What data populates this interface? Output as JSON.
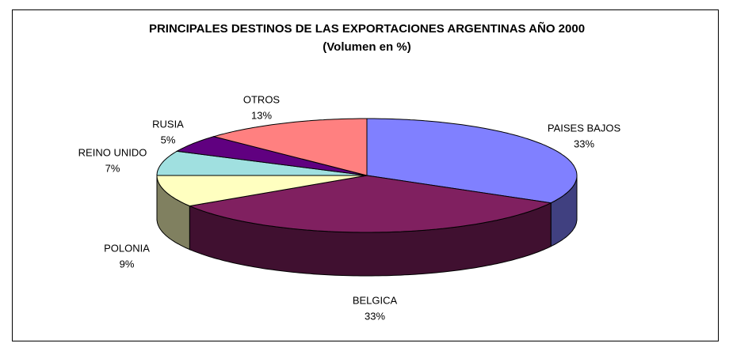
{
  "chart_data": {
    "type": "pie3d",
    "title": "PRINCIPALES DESTINOS DE LAS EXPORTACIONES ARGENTINAS AÑO 2000",
    "subtitle": "(Volumen en %)",
    "categories": [
      "PAISES BAJOS",
      "BELGICA",
      "POLONIA",
      "REINO UNIDO",
      "RUSIA",
      "OTROS"
    ],
    "values": [
      33,
      33,
      9,
      7,
      5,
      13
    ],
    "value_labels": [
      "33%",
      "33%",
      "9%",
      "7%",
      "5%",
      "13%"
    ],
    "colors": [
      "#8080ff",
      "#802060",
      "#ffffc0",
      "#a0e0e0",
      "#600080",
      "#ff8080"
    ]
  }
}
